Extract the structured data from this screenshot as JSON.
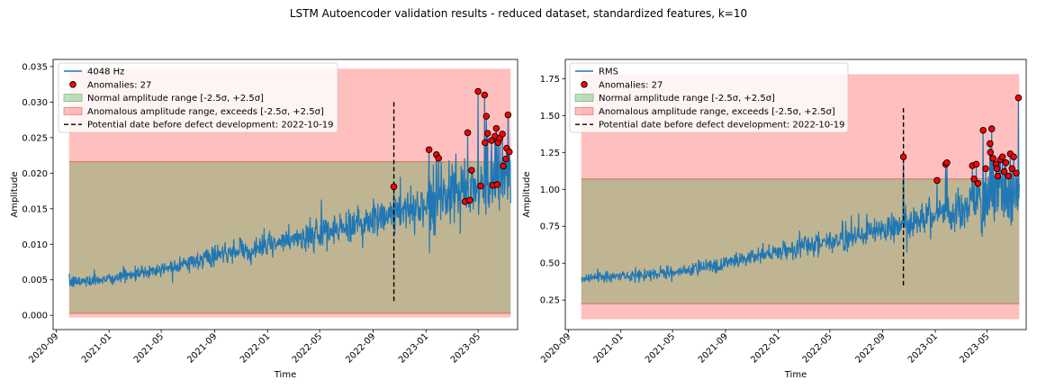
{
  "figure": {
    "title": "LSTM Autoencoder validation results - reduced dataset, standardized features, k=10"
  },
  "chart_data": [
    {
      "type": "line",
      "xlabel": "Time",
      "ylabel": "Amplitude",
      "x_ticks": [
        "2020-09",
        "2021-01",
        "2021-05",
        "2021-09",
        "2022-01",
        "2022-05",
        "2022-09",
        "2023-01",
        "2023-05"
      ],
      "x_range": [
        "2020-08-25",
        "2023-07-31"
      ],
      "y_ticks": [
        "0.000",
        "0.005",
        "0.010",
        "0.015",
        "0.020",
        "0.025",
        "0.030",
        "0.035"
      ],
      "ylim": [
        -0.002,
        0.036
      ],
      "grid": false,
      "legend_position": "top-left",
      "legend": {
        "series": "4048 Hz",
        "anomalies": "Anomalies: 27",
        "normal": "Normal amplitude range [-2.5σ, +2.5σ]",
        "anomalous": "Anomalous amplitude range, exceeds [-2.5σ, +2.5σ]",
        "potential": "Potential date before defect development: 2022-10-19"
      },
      "series_start": "2020-10-01",
      "series_end": "2023-07-15",
      "normal_range": [
        0.0003,
        0.0216
      ],
      "anomalous_range": [
        -0.0003,
        0.0347
      ],
      "potential_date": "2022-10-19",
      "vline_range": [
        0.002,
        0.03
      ],
      "trend": [
        {
          "date": "2020-10-01",
          "value": 0.0046
        },
        {
          "date": "2021-01-01",
          "value": 0.0052
        },
        {
          "date": "2021-05-01",
          "value": 0.0065
        },
        {
          "date": "2021-09-01",
          "value": 0.0083
        },
        {
          "date": "2022-01-01",
          "value": 0.0098
        },
        {
          "date": "2022-05-01",
          "value": 0.0113
        },
        {
          "date": "2022-09-01",
          "value": 0.0135
        },
        {
          "date": "2023-01-01",
          "value": 0.0155
        },
        {
          "date": "2023-05-01",
          "value": 0.0175
        },
        {
          "date": "2023-07-15",
          "value": 0.019
        }
      ],
      "anomalies_count": 27,
      "anomalies": [
        {
          "date": "2022-10-19",
          "value": 0.0181
        },
        {
          "date": "2023-01-08",
          "value": 0.0233
        },
        {
          "date": "2023-01-25",
          "value": 0.0226
        },
        {
          "date": "2023-01-30",
          "value": 0.0221
        },
        {
          "date": "2023-04-01",
          "value": 0.016
        },
        {
          "date": "2023-04-07",
          "value": 0.0257
        },
        {
          "date": "2023-04-12",
          "value": 0.0162
        },
        {
          "date": "2023-04-16",
          "value": 0.0204
        },
        {
          "date": "2023-05-01",
          "value": 0.0315
        },
        {
          "date": "2023-05-07",
          "value": 0.0182
        },
        {
          "date": "2023-05-16",
          "value": 0.031
        },
        {
          "date": "2023-05-17",
          "value": 0.0243
        },
        {
          "date": "2023-05-20",
          "value": 0.028
        },
        {
          "date": "2023-05-23",
          "value": 0.0256
        },
        {
          "date": "2023-06-01",
          "value": 0.0246
        },
        {
          "date": "2023-06-04",
          "value": 0.0183
        },
        {
          "date": "2023-06-09",
          "value": 0.0252
        },
        {
          "date": "2023-06-12",
          "value": 0.0263
        },
        {
          "date": "2023-06-14",
          "value": 0.0184
        },
        {
          "date": "2023-06-16",
          "value": 0.0243
        },
        {
          "date": "2023-06-20",
          "value": 0.0249
        },
        {
          "date": "2023-06-26",
          "value": 0.0255
        },
        {
          "date": "2023-06-28",
          "value": 0.021
        },
        {
          "date": "2023-07-04",
          "value": 0.022
        },
        {
          "date": "2023-07-06",
          "value": 0.0235
        },
        {
          "date": "2023-07-09",
          "value": 0.0282
        },
        {
          "date": "2023-07-12",
          "value": 0.023
        }
      ]
    },
    {
      "type": "line",
      "xlabel": "Time",
      "ylabel": "Amplitude",
      "x_ticks": [
        "2020-09",
        "2021-01",
        "2021-05",
        "2021-09",
        "2022-01",
        "2022-05",
        "2022-09",
        "2023-01",
        "2023-05"
      ],
      "x_range": [
        "2020-08-25",
        "2023-07-31"
      ],
      "y_ticks": [
        "0.25",
        "0.50",
        "0.75",
        "1.00",
        "1.25",
        "1.50",
        "1.75"
      ],
      "ylim": [
        0.05,
        1.88
      ],
      "grid": false,
      "legend_position": "top-left",
      "legend": {
        "series": "RMS",
        "anomalies": "Anomalies: 27",
        "normal": "Normal amplitude range [-2.5σ, +2.5σ]",
        "anomalous": "Anomalous amplitude range, exceeds [-2.5σ, +2.5σ]",
        "potential": "Potential date before defect development: 2022-10-19"
      },
      "series_start": "2020-10-01",
      "series_end": "2023-07-15",
      "normal_range": [
        0.225,
        1.07
      ],
      "anomalous_range": [
        0.12,
        1.78
      ],
      "potential_date": "2022-10-19",
      "vline_range": [
        0.35,
        1.55
      ],
      "trend": [
        {
          "date": "2020-10-01",
          "value": 0.4
        },
        {
          "date": "2021-01-01",
          "value": 0.41
        },
        {
          "date": "2021-05-01",
          "value": 0.44
        },
        {
          "date": "2021-09-01",
          "value": 0.5
        },
        {
          "date": "2022-01-01",
          "value": 0.58
        },
        {
          "date": "2022-05-01",
          "value": 0.65
        },
        {
          "date": "2022-09-01",
          "value": 0.72
        },
        {
          "date": "2023-01-01",
          "value": 0.82
        },
        {
          "date": "2023-05-01",
          "value": 0.9
        },
        {
          "date": "2023-07-15",
          "value": 0.95
        }
      ],
      "anomalies_count": 27,
      "anomalies": [
        {
          "date": "2022-10-19",
          "value": 1.22
        },
        {
          "date": "2023-01-05",
          "value": 1.06
        },
        {
          "date": "2023-01-25",
          "value": 1.17
        },
        {
          "date": "2023-01-28",
          "value": 1.18
        },
        {
          "date": "2023-03-28",
          "value": 1.16
        },
        {
          "date": "2023-04-01",
          "value": 1.07
        },
        {
          "date": "2023-04-06",
          "value": 1.17
        },
        {
          "date": "2023-04-10",
          "value": 1.04
        },
        {
          "date": "2023-04-22",
          "value": 1.4
        },
        {
          "date": "2023-04-28",
          "value": 1.14
        },
        {
          "date": "2023-05-08",
          "value": 1.31
        },
        {
          "date": "2023-05-09",
          "value": 1.25
        },
        {
          "date": "2023-05-12",
          "value": 1.41
        },
        {
          "date": "2023-05-15",
          "value": 1.21
        },
        {
          "date": "2023-05-22",
          "value": 1.17
        },
        {
          "date": "2023-05-24",
          "value": 1.14
        },
        {
          "date": "2023-05-26",
          "value": 1.09
        },
        {
          "date": "2023-06-01",
          "value": 1.2
        },
        {
          "date": "2023-06-06",
          "value": 1.22
        },
        {
          "date": "2023-06-10",
          "value": 1.12
        },
        {
          "date": "2023-06-14",
          "value": 1.18
        },
        {
          "date": "2023-06-20",
          "value": 1.09
        },
        {
          "date": "2023-06-24",
          "value": 1.24
        },
        {
          "date": "2023-06-28",
          "value": 1.14
        },
        {
          "date": "2023-07-02",
          "value": 1.22
        },
        {
          "date": "2023-07-08",
          "value": 1.11
        },
        {
          "date": "2023-07-13",
          "value": 1.62
        }
      ]
    }
  ],
  "colors": {
    "line": "#1f77b4",
    "normal_fill": "#2ca02c",
    "anomalous_fill": "#ff0000",
    "marker_fill": "#ff0000",
    "marker_edge": "#000000",
    "vline": "#000000"
  }
}
